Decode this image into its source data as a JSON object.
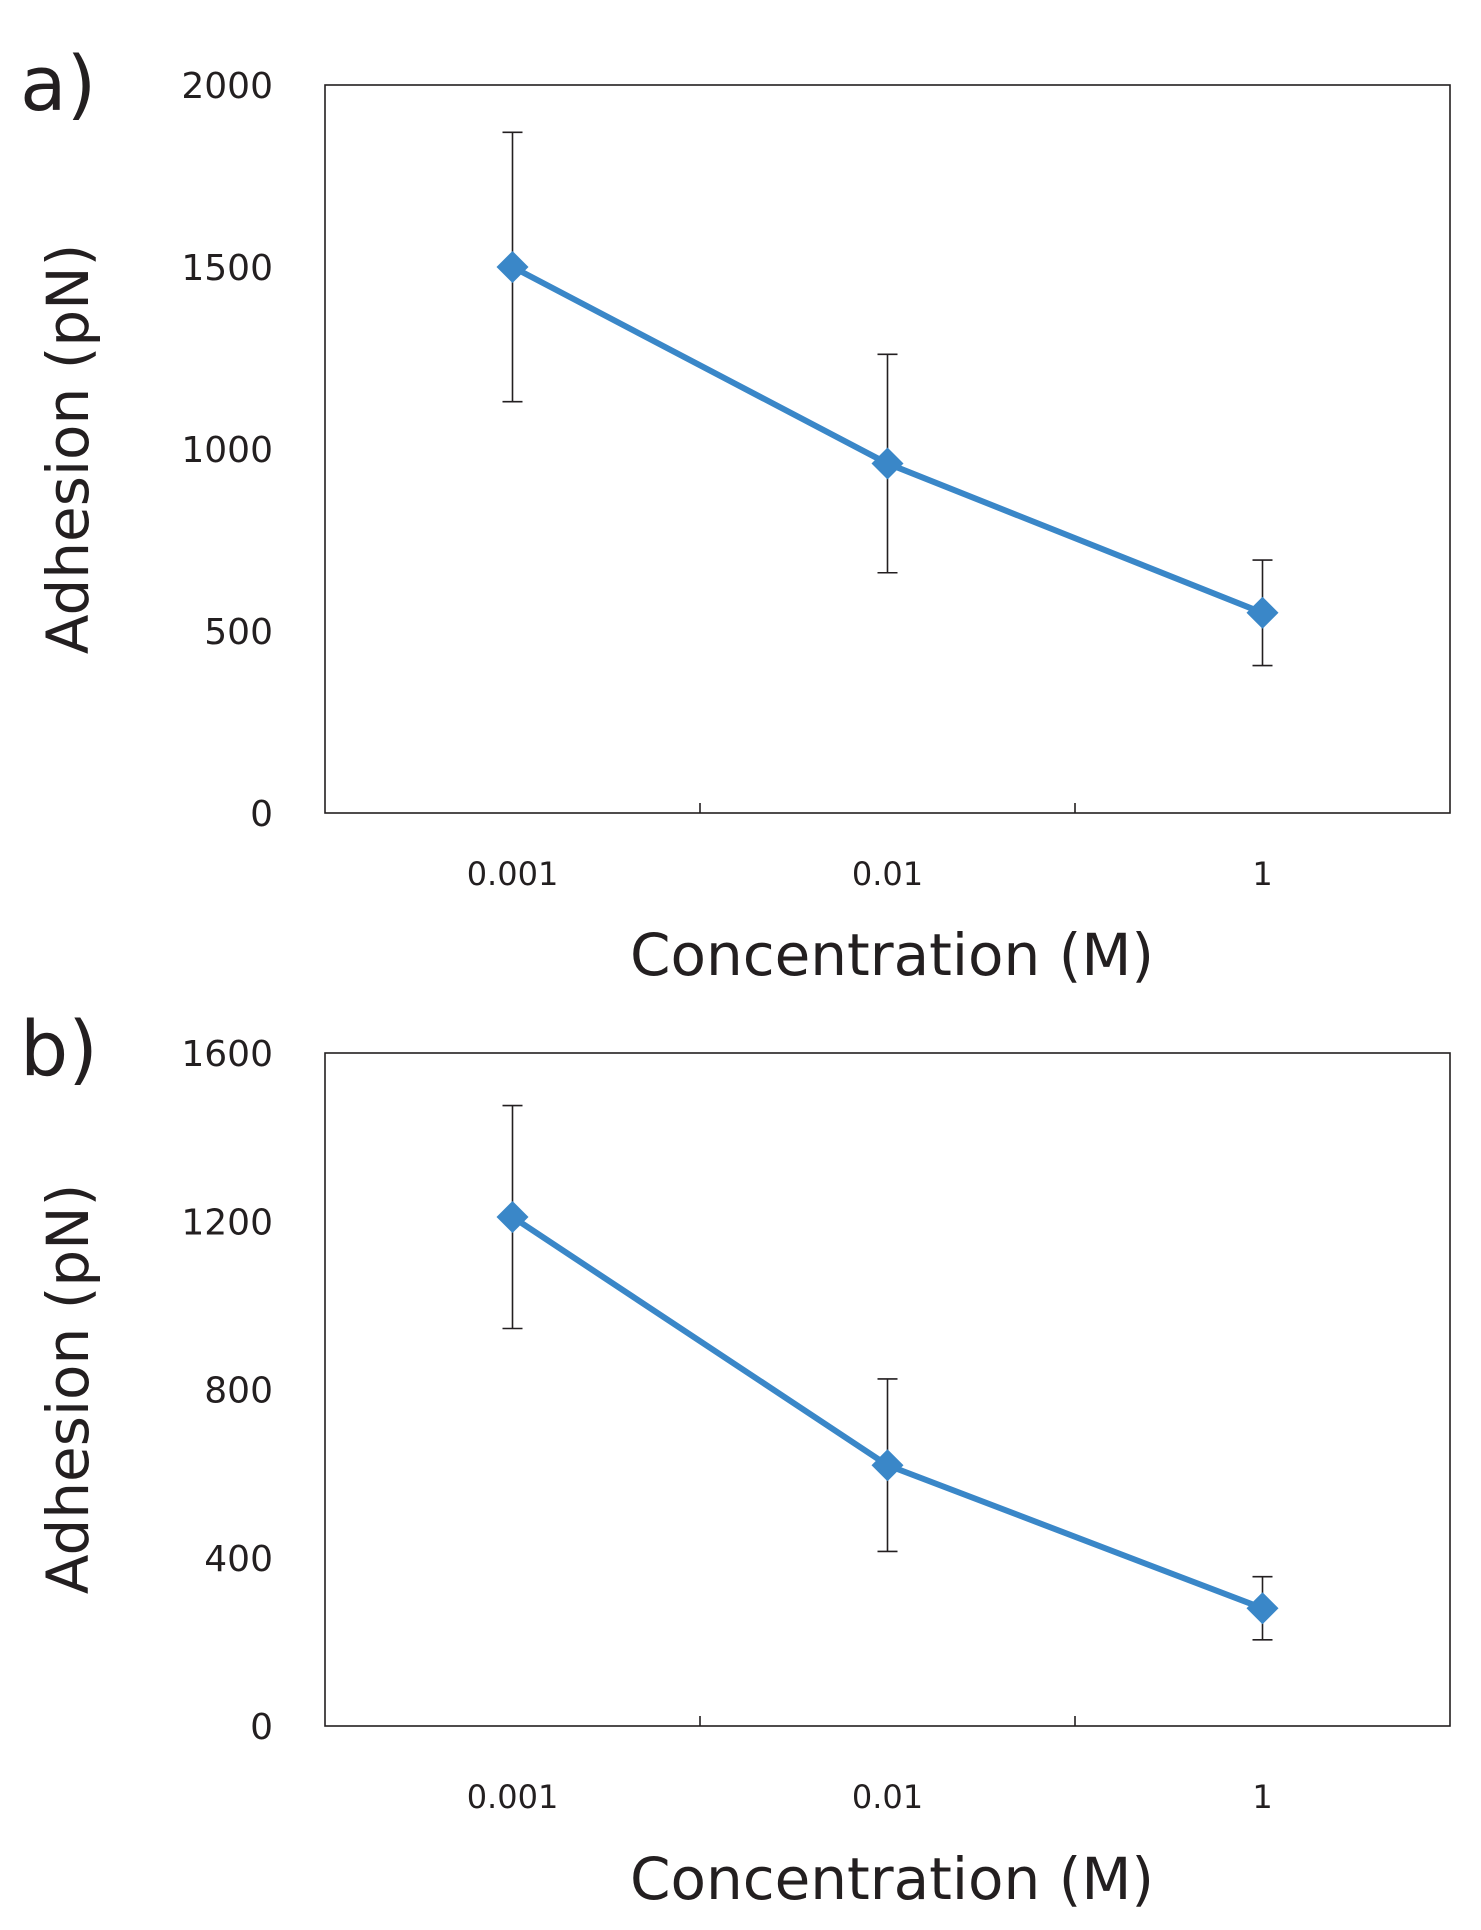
{
  "colors": {
    "series": "#3a87c8",
    "axis": "#231f20"
  },
  "chart_data": [
    {
      "type": "line",
      "panel_label": "a)",
      "categories": [
        "0.001",
        "0.01",
        "1"
      ],
      "series": [
        {
          "name": "Adhesion",
          "values": [
            1500,
            960,
            550
          ],
          "error": [
            370,
            300,
            145
          ]
        }
      ],
      "xlabel": "Concentration (M)",
      "ylabel": "Adhesion (pN)",
      "ylim": [
        0,
        2000
      ],
      "yticks": [
        "0",
        "500",
        "1000",
        "1500",
        "2000"
      ],
      "marker": "diamond",
      "grid": false
    },
    {
      "type": "line",
      "panel_label": "b)",
      "categories": [
        "0.001",
        "0.01",
        "1"
      ],
      "series": [
        {
          "name": "Adhesion",
          "values": [
            1210,
            620,
            280
          ],
          "error": [
            265,
            205,
            75
          ]
        }
      ],
      "xlabel": "Concentration (M)",
      "ylabel": "Adhesion (pN)",
      "ylim": [
        0,
        1600
      ],
      "yticks": [
        "0",
        "400",
        "800",
        "1200",
        "1600"
      ],
      "marker": "diamond",
      "grid": false
    }
  ]
}
